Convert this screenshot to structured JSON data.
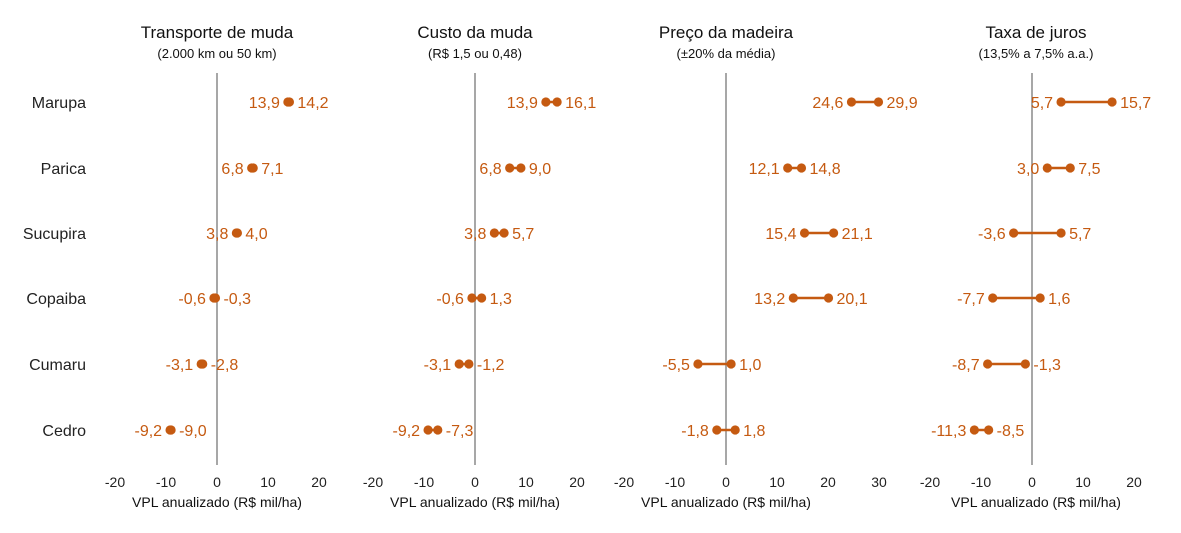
{
  "colors": {
    "accent": "#c55a11",
    "zero_line": "#8a8a8a",
    "text": "#222222"
  },
  "chart_data": [
    {
      "type": "dumbbell",
      "title": "Transporte de muda",
      "subtitle": "(2.000 km ou 50 km)",
      "xlabel": "VPL anualizado (R$ mil/ha)",
      "xlim": [
        -20,
        20
      ],
      "xticks": [
        "-20",
        "-10",
        "0",
        "10",
        "20"
      ],
      "categories": [
        "Marupa",
        "Parica",
        "Sucupira",
        "Copaiba",
        "Cumaru",
        "Cedro"
      ],
      "low": [
        13.9,
        6.8,
        3.8,
        -0.6,
        -3.1,
        -9.2
      ],
      "high": [
        14.2,
        7.1,
        4.0,
        -0.3,
        -2.8,
        -9.0
      ],
      "low_labels": [
        "13,9",
        "6,8",
        "3,8",
        "-0,6",
        "-3,1",
        "-9,2"
      ],
      "high_labels": [
        "14,2",
        "7,1",
        "4,0",
        "-0,3",
        "-2,8",
        "-9,0"
      ]
    },
    {
      "type": "dumbbell",
      "title": "Custo da muda",
      "subtitle": "(R$ 1,5 ou 0,48)",
      "xlabel": "VPL anualizado (R$ mil/ha)",
      "xlim": [
        -20,
        20
      ],
      "xticks": [
        "-20",
        "-10",
        "0",
        "10",
        "20"
      ],
      "categories": [
        "Marupa",
        "Parica",
        "Sucupira",
        "Copaiba",
        "Cumaru",
        "Cedro"
      ],
      "low": [
        13.9,
        6.8,
        3.8,
        -0.6,
        -3.1,
        -9.2
      ],
      "high": [
        16.1,
        9.0,
        5.7,
        1.3,
        -1.2,
        -7.3
      ],
      "low_labels": [
        "13,9",
        "6,8",
        "3,8",
        "-0,6",
        "-3,1",
        "-9,2"
      ],
      "high_labels": [
        "16,1",
        "9,0",
        "5,7",
        "1,3",
        "-1,2",
        "-7,3"
      ]
    },
    {
      "type": "dumbbell",
      "title": "Preço da madeira",
      "subtitle": "(±20% da média)",
      "xlabel": "VPL anualizado (R$ mil/ha)",
      "xlim": [
        -20,
        30
      ],
      "xticks": [
        "-20",
        "-10",
        "0",
        "10",
        "20",
        "30"
      ],
      "categories": [
        "Marupa",
        "Parica",
        "Sucupira",
        "Copaiba",
        "Cumaru",
        "Cedro"
      ],
      "low": [
        24.6,
        12.1,
        15.4,
        13.2,
        -5.5,
        -1.8
      ],
      "high": [
        29.9,
        14.8,
        21.1,
        20.1,
        1.0,
        1.8
      ],
      "low_labels": [
        "24,6",
        "12,1",
        "15,4",
        "13,2",
        "-5,5",
        "-1,8"
      ],
      "high_labels": [
        "29,9",
        "14,8",
        "21,1",
        "20,1",
        "1,0",
        "1,8"
      ]
    },
    {
      "type": "dumbbell",
      "title": "Taxa de juros",
      "subtitle": "(13,5% a 7,5% a.a.)",
      "xlabel": "VPL anualizado (R$ mil/ha)",
      "xlim": [
        -20,
        20
      ],
      "xticks": [
        "-20",
        "-10",
        "0",
        "10",
        "20"
      ],
      "categories": [
        "Marupa",
        "Parica",
        "Sucupira",
        "Copaiba",
        "Cumaru",
        "Cedro"
      ],
      "low": [
        5.7,
        3.0,
        -3.6,
        -7.7,
        -8.7,
        -11.3
      ],
      "high": [
        15.7,
        7.5,
        5.7,
        1.6,
        -1.3,
        -8.5
      ],
      "low_labels": [
        "5,7",
        "3,0",
        "-3,6",
        "-7,7",
        "-8,7",
        "-11,3"
      ],
      "high_labels": [
        "15,7",
        "7,5",
        "5,7",
        "1,6",
        "-1,3",
        "-8,5"
      ]
    }
  ]
}
